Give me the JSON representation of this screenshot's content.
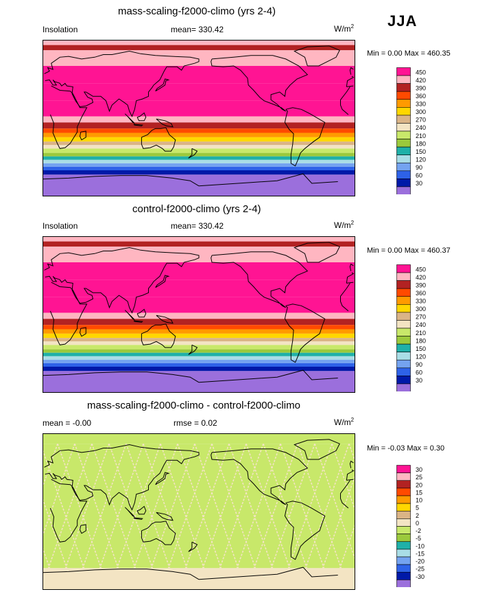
{
  "season": "JJA",
  "panels": [
    {
      "title": "mass-scaling-f2000-climo (yrs 2-4)",
      "left": "Insolation",
      "center": "mean= 330.42",
      "units": "W/m",
      "units_sup": "2",
      "minmax": "Min =   0.00 Max = 460.35"
    },
    {
      "title": "control-f2000-climo (yrs 2-4)",
      "left": "Insolation",
      "center": "mean= 330.42",
      "units": "W/m",
      "units_sup": "2",
      "minmax": "Min =   0.00 Max = 460.37"
    },
    {
      "title": "mass-scaling-f2000-climo - control-f2000-climo",
      "left": "mean =  -0.00",
      "center": "rmse =   0.02",
      "units": "W/m",
      "units_sup": "2",
      "minmax": "Min =  -0.03 Max =   0.30"
    }
  ],
  "chart_data": [
    {
      "type": "heatmap",
      "title": "mass-scaling-f2000-climo (yrs 2-4)",
      "variable": "Insolation",
      "mean": 330.42,
      "min": 0.0,
      "max": 460.35,
      "lat_bands": [
        {
          "lat": [
            90,
            84
          ],
          "value": 440
        },
        {
          "lat": [
            84,
            78
          ],
          "value": 400
        },
        {
          "lat": [
            78,
            60
          ],
          "value": 440
        },
        {
          "lat": [
            60,
            40
          ],
          "value": 460
        },
        {
          "lat": [
            40,
            20
          ],
          "value": 460
        },
        {
          "lat": [
            20,
            2
          ],
          "value": 460
        },
        {
          "lat": [
            2,
            -5
          ],
          "value": 440
        },
        {
          "lat": [
            -5,
            -12
          ],
          "value": 400
        },
        {
          "lat": [
            -12,
            -17
          ],
          "value": 380
        },
        {
          "lat": [
            -17,
            -22
          ],
          "value": 350
        },
        {
          "lat": [
            -22,
            -27
          ],
          "value": 320
        },
        {
          "lat": [
            -27,
            -31
          ],
          "value": 290
        },
        {
          "lat": [
            -31,
            -35
          ],
          "value": 260
        },
        {
          "lat": [
            -35,
            -40
          ],
          "value": 230
        },
        {
          "lat": [
            -40,
            -44
          ],
          "value": 200
        },
        {
          "lat": [
            -44,
            -48
          ],
          "value": 170
        },
        {
          "lat": [
            -48,
            -52
          ],
          "value": 140
        },
        {
          "lat": [
            -52,
            -56
          ],
          "value": 110
        },
        {
          "lat": [
            -56,
            -60
          ],
          "value": 80
        },
        {
          "lat": [
            -60,
            -65
          ],
          "value": 50
        },
        {
          "lat": [
            -65,
            -90
          ],
          "value": 15
        }
      ]
    },
    {
      "type": "heatmap",
      "title": "control-f2000-climo (yrs 2-4)",
      "variable": "Insolation",
      "mean": 330.42,
      "min": 0.0,
      "max": 460.37,
      "lat_bands": [
        {
          "lat": [
            90,
            84
          ],
          "value": 440
        },
        {
          "lat": [
            84,
            78
          ],
          "value": 400
        },
        {
          "lat": [
            78,
            60
          ],
          "value": 440
        },
        {
          "lat": [
            60,
            40
          ],
          "value": 460
        },
        {
          "lat": [
            40,
            20
          ],
          "value": 460
        },
        {
          "lat": [
            20,
            2
          ],
          "value": 460
        },
        {
          "lat": [
            2,
            -5
          ],
          "value": 440
        },
        {
          "lat": [
            -5,
            -12
          ],
          "value": 400
        },
        {
          "lat": [
            -12,
            -17
          ],
          "value": 380
        },
        {
          "lat": [
            -17,
            -22
          ],
          "value": 350
        },
        {
          "lat": [
            -22,
            -27
          ],
          "value": 320
        },
        {
          "lat": [
            -27,
            -31
          ],
          "value": 290
        },
        {
          "lat": [
            -31,
            -35
          ],
          "value": 260
        },
        {
          "lat": [
            -35,
            -40
          ],
          "value": 230
        },
        {
          "lat": [
            -40,
            -44
          ],
          "value": 200
        },
        {
          "lat": [
            -44,
            -48
          ],
          "value": 170
        },
        {
          "lat": [
            -48,
            -52
          ],
          "value": 140
        },
        {
          "lat": [
            -52,
            -56
          ],
          "value": 110
        },
        {
          "lat": [
            -56,
            -60
          ],
          "value": 80
        },
        {
          "lat": [
            -60,
            -65
          ],
          "value": 50
        },
        {
          "lat": [
            -65,
            -90
          ],
          "value": 15
        }
      ]
    },
    {
      "type": "heatmap",
      "title": "mass-scaling-f2000-climo - control-f2000-climo",
      "variable": "difference",
      "mean": -0.0,
      "rmse": 0.02,
      "min": -0.03,
      "max": 0.3,
      "lat_bands": [
        {
          "lat": [
            90,
            78
          ],
          "value": -1
        },
        {
          "lat": [
            78,
            -65
          ],
          "value": -1,
          "speckle": 1
        },
        {
          "lat": [
            -65,
            -90
          ],
          "value": 1
        }
      ]
    }
  ],
  "colorbars": [
    {
      "colors": [
        "#9b6fdc",
        "#0019a8",
        "#2e62e8",
        "#74a3f0",
        "#a9dde6",
        "#1fb0a8",
        "#9bc93c",
        "#c8e86a",
        "#f3e4c3",
        "#dab486",
        "#ffd700",
        "#ff9a00",
        "#ff4a00",
        "#b22222",
        "#ffb6c1",
        "#ff1493"
      ],
      "labels": [
        "30",
        "60",
        "90",
        "120",
        "150",
        "180",
        "210",
        "240",
        "270",
        "300",
        "330",
        "360",
        "390",
        "420",
        "450"
      ]
    },
    {
      "colors": [
        "#9b6fdc",
        "#0019a8",
        "#2e62e8",
        "#74a3f0",
        "#a9dde6",
        "#1fb0a8",
        "#9bc93c",
        "#c8e86a",
        "#f3e4c3",
        "#dab486",
        "#ffd700",
        "#ff9a00",
        "#ff4a00",
        "#b22222",
        "#ffb6c1",
        "#ff1493"
      ],
      "labels": [
        "30",
        "60",
        "90",
        "120",
        "150",
        "180",
        "210",
        "240",
        "270",
        "300",
        "330",
        "360",
        "390",
        "420",
        "450"
      ]
    },
    {
      "colors": [
        "#9b6fdc",
        "#0019a8",
        "#2e62e8",
        "#74a3f0",
        "#a9dde6",
        "#1fb0a8",
        "#9bc93c",
        "#c8e86a",
        "#f3e4c3",
        "#dab486",
        "#ffd700",
        "#ff9a00",
        "#ff4a00",
        "#b22222",
        "#ffb6c1",
        "#ff1493"
      ],
      "labels": [
        "-30",
        "-25",
        "-20",
        "-15",
        "-10",
        "-5",
        "-2",
        "0",
        "2",
        "5",
        "10",
        "15",
        "20",
        "25",
        "30"
      ]
    }
  ]
}
